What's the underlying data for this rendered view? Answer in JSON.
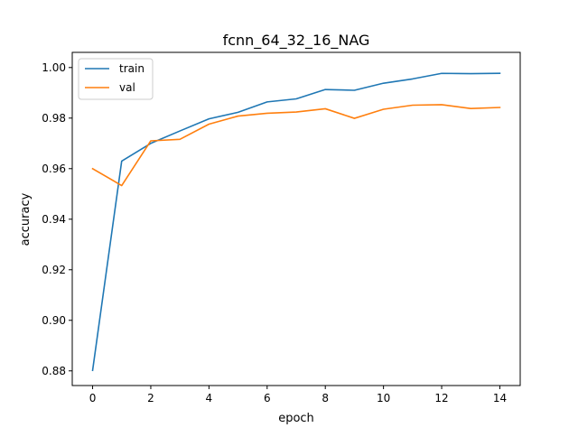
{
  "chart_data": {
    "type": "line",
    "title": "fcnn_64_32_16_NAG",
    "xlabel": "epoch",
    "ylabel": "accuracy",
    "x": [
      0,
      1,
      2,
      3,
      4,
      5,
      6,
      7,
      8,
      9,
      10,
      11,
      12,
      13,
      14
    ],
    "xlim": [
      -0.7,
      14.7
    ],
    "ylim": [
      0.8742,
      1.006
    ],
    "xticks": [
      0,
      2,
      4,
      6,
      8,
      10,
      12,
      14
    ],
    "xtick_labels": [
      "0",
      "2",
      "4",
      "6",
      "8",
      "10",
      "12",
      "14"
    ],
    "yticks": [
      0.88,
      0.9,
      0.92,
      0.94,
      0.96,
      0.98,
      1.0
    ],
    "ytick_labels": [
      "0.88",
      "0.90",
      "0.92",
      "0.94",
      "0.96",
      "0.98",
      "1.00"
    ],
    "grid": false,
    "legend_position": "upper-left",
    "series": [
      {
        "name": "train",
        "color": "#1f77b4",
        "values": [
          0.8802,
          0.963,
          0.97,
          0.9749,
          0.9797,
          0.9823,
          0.9864,
          0.9876,
          0.9913,
          0.991,
          0.9938,
          0.9955,
          0.9977,
          0.9976,
          0.9977
        ]
      },
      {
        "name": "val",
        "color": "#ff7f0e",
        "values": [
          0.96,
          0.9533,
          0.971,
          0.9716,
          0.9776,
          0.9808,
          0.9819,
          0.9824,
          0.9837,
          0.9799,
          0.9835,
          0.9851,
          0.9853,
          0.9838,
          0.9842
        ]
      }
    ]
  }
}
